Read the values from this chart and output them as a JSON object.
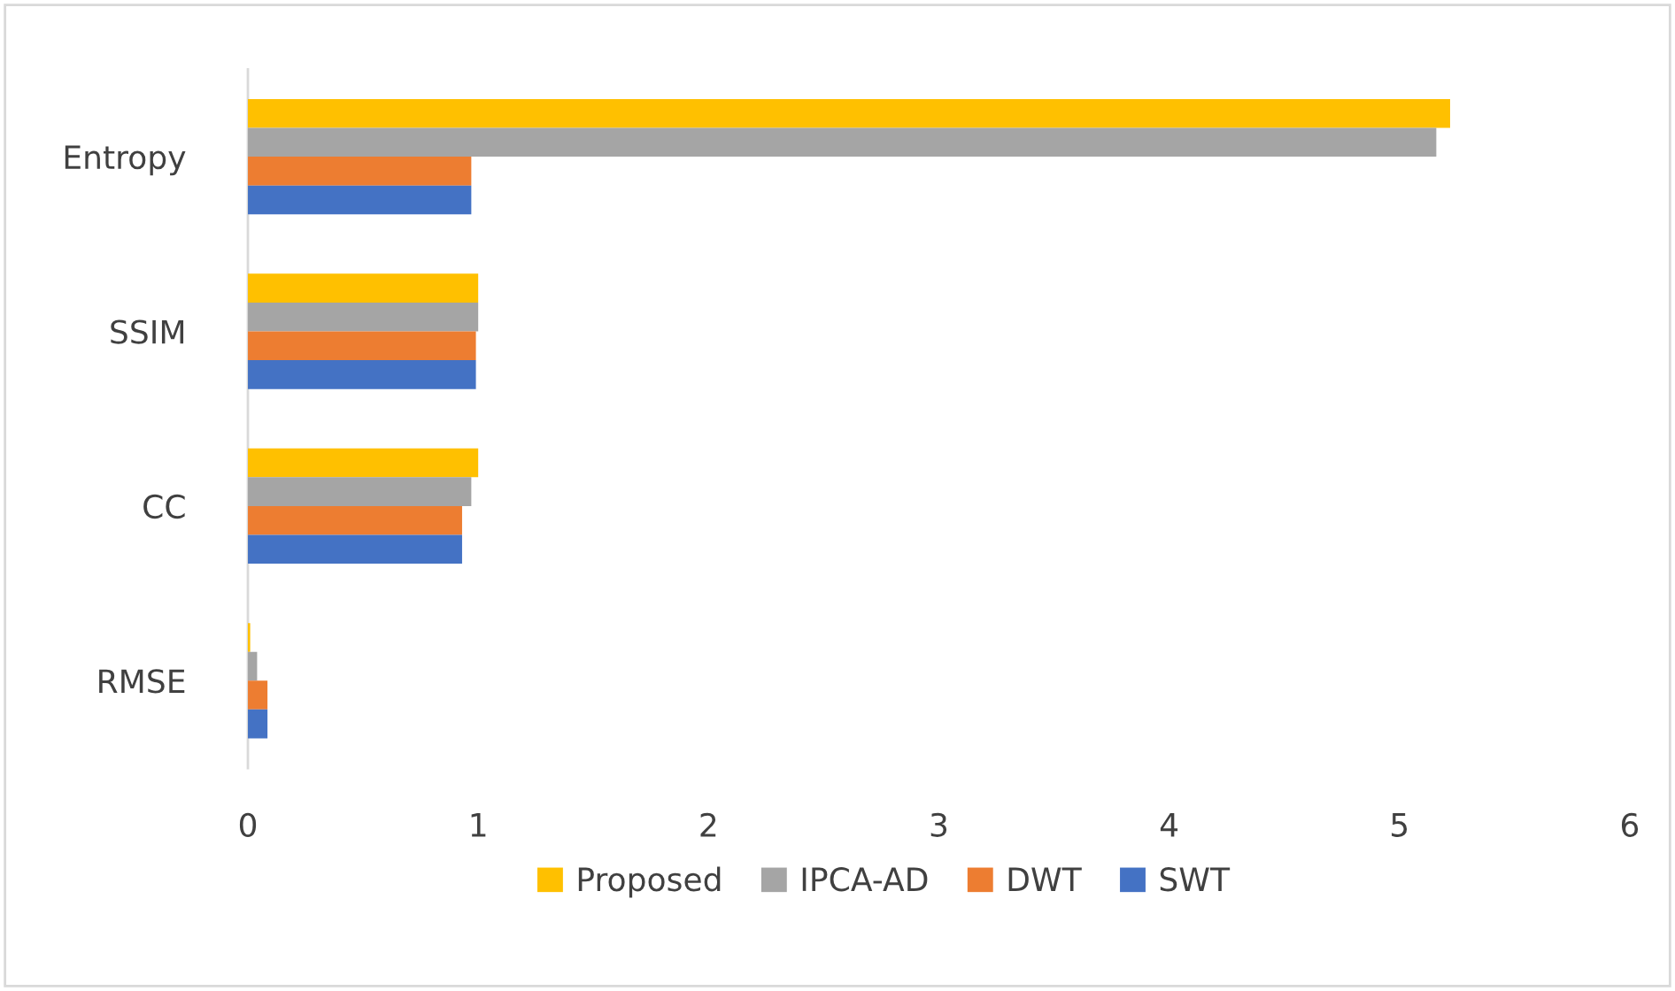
{
  "chart_data": {
    "type": "bar",
    "orientation": "horizontal",
    "categories": [
      "Entropy",
      "SSIM",
      "CC",
      "RMSE"
    ],
    "series": [
      {
        "name": "Proposed",
        "color": "#ffc000",
        "values": [
          5.22,
          1.0,
          1.0,
          0.01
        ]
      },
      {
        "name": "IPCA-AD",
        "color": "#a5a5a5",
        "values": [
          5.16,
          1.0,
          0.97,
          0.04
        ]
      },
      {
        "name": "DWT",
        "color": "#ed7d31",
        "values": [
          0.97,
          0.99,
          0.93,
          0.085
        ]
      },
      {
        "name": "SWT",
        "color": "#4472c4",
        "values": [
          0.97,
          0.99,
          0.93,
          0.085
        ]
      }
    ],
    "xlim": [
      0,
      6
    ],
    "xticks": [
      0,
      1,
      2,
      3,
      4,
      5,
      6
    ],
    "grid": false,
    "legend": "bottom"
  }
}
